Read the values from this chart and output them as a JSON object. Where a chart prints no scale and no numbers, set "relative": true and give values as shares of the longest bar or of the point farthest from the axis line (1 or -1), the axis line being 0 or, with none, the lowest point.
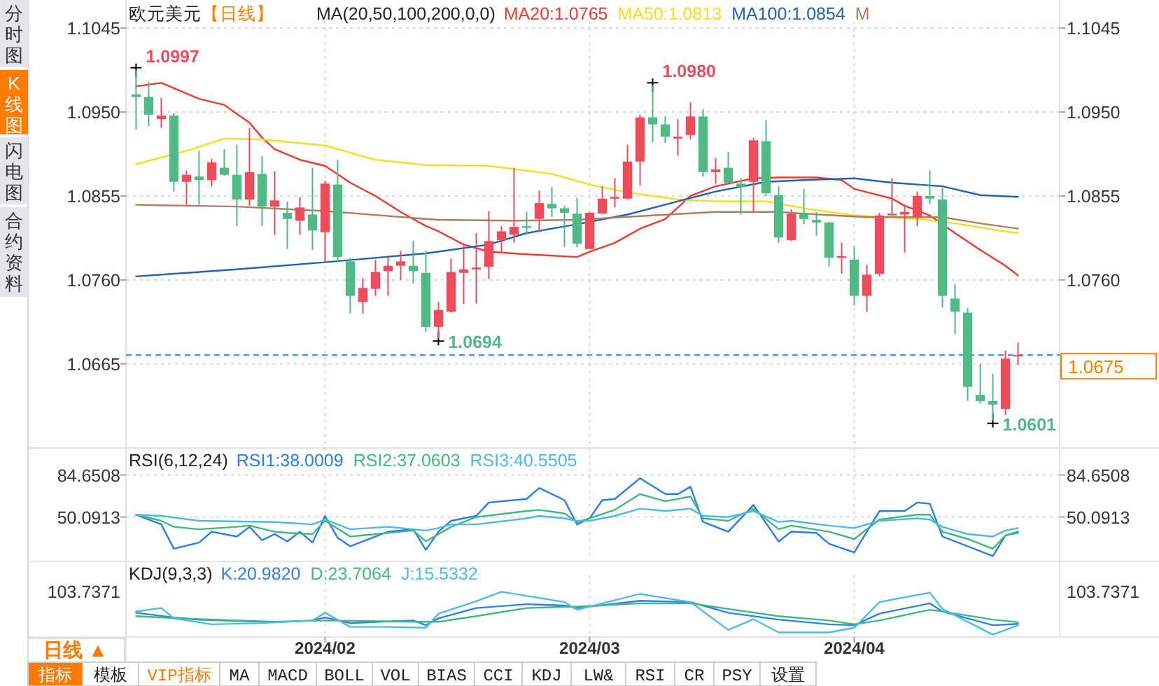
{
  "chart_data": [
    {
      "type": "candlestick",
      "title": "欧元美元",
      "subtitle": "【日线】",
      "legend_title": "MA(20,50,100,200,0,0)",
      "grid": true,
      "tick_labels": "y",
      "categories": [
        null,
        null,
        null,
        null,
        null,
        null,
        null,
        null,
        null,
        null,
        null,
        null,
        null,
        null,
        null,
        "2024/02",
        null,
        null,
        null,
        null,
        null,
        null,
        null,
        null,
        null,
        null,
        null,
        null,
        null,
        null,
        null,
        null,
        null,
        null,
        null,
        null,
        "2024/03",
        null,
        null,
        null,
        null,
        null,
        null,
        null,
        null,
        null,
        null,
        null,
        null,
        null,
        null,
        null,
        null,
        null,
        null,
        null,
        null,
        "2024/04",
        null,
        null,
        null,
        null,
        null,
        null,
        null,
        null,
        null,
        null,
        null,
        null,
        null
      ],
      "ohlc": [
        [
          1.097,
          1.0997,
          1.093,
          1.0967
        ],
        [
          1.0967,
          1.0984,
          1.0934,
          1.0947
        ],
        [
          1.0942,
          1.0966,
          1.0932,
          1.0946
        ],
        [
          1.0946,
          1.0949,
          1.086,
          1.0871
        ],
        [
          1.0871,
          1.0884,
          1.0845,
          1.0879
        ],
        [
          1.0877,
          1.0906,
          1.0845,
          1.0873
        ],
        [
          1.0873,
          1.0897,
          1.0866,
          1.0893
        ],
        [
          1.0887,
          1.0908,
          1.0878,
          1.0879
        ],
        [
          1.0879,
          1.0913,
          1.0821,
          1.0851
        ],
        [
          1.0851,
          1.0932,
          1.0844,
          1.0882
        ],
        [
          1.088,
          1.09,
          1.0821,
          1.0843
        ],
        [
          1.0843,
          1.0883,
          1.0811,
          1.085
        ],
        [
          1.0836,
          1.0849,
          1.0795,
          1.0829
        ],
        [
          1.0827,
          1.0854,
          1.0811,
          1.0842
        ],
        [
          1.0834,
          1.0887,
          1.0794,
          1.0816
        ],
        [
          1.0814,
          1.0872,
          1.078,
          1.0869
        ],
        [
          1.0868,
          1.0896,
          1.078,
          1.0786
        ],
        [
          1.0781,
          1.0785,
          1.0722,
          1.0742
        ],
        [
          1.0735,
          1.0762,
          1.0722,
          1.0751
        ],
        [
          1.075,
          1.0783,
          1.0742,
          1.0769
        ],
        [
          1.077,
          1.0786,
          1.0742,
          1.0776
        ],
        [
          1.0776,
          1.0793,
          1.076,
          1.0781
        ],
        [
          1.0776,
          1.0804,
          1.0756,
          1.077
        ],
        [
          1.0768,
          1.0793,
          1.0701,
          1.0707
        ],
        [
          1.0707,
          1.0735,
          1.0694,
          1.0726
        ],
        [
          1.0724,
          1.0784,
          1.0723,
          1.0769
        ],
        [
          1.0768,
          1.0801,
          1.0733,
          1.0772
        ],
        [
          1.0772,
          1.0813,
          1.0733,
          1.0774
        ],
        [
          1.0775,
          1.0838,
          1.0761,
          1.0804
        ],
        [
          1.0805,
          1.0821,
          1.0791,
          1.0815
        ],
        [
          1.0811,
          1.0887,
          1.0802,
          1.082
        ],
        [
          1.0821,
          1.0837,
          1.0811,
          1.0819
        ],
        [
          1.0829,
          1.0861,
          1.0814,
          1.0847
        ],
        [
          1.0846,
          1.0865,
          1.0831,
          1.0841
        ],
        [
          1.0841,
          1.0844,
          1.0797,
          1.0836
        ],
        [
          1.0835,
          1.0853,
          1.0797,
          1.0801
        ],
        [
          1.0795,
          1.0837,
          1.0795,
          1.0836
        ],
        [
          1.0835,
          1.0866,
          1.0835,
          1.0852
        ],
        [
          1.0852,
          1.0875,
          1.0842,
          1.0854
        ],
        [
          1.0852,
          1.0913,
          1.0851,
          1.0894
        ],
        [
          1.0894,
          1.0947,
          1.0867,
          1.0944
        ],
        [
          1.0944,
          1.098,
          1.0916,
          1.0936
        ],
        [
          1.0936,
          1.0945,
          1.0915,
          1.0922
        ],
        [
          1.092,
          1.0942,
          1.0901,
          1.0922
        ],
        [
          1.0924,
          1.0961,
          1.0919,
          1.0945
        ],
        [
          1.0945,
          1.0953,
          1.0877,
          1.0882
        ],
        [
          1.0882,
          1.0898,
          1.0869,
          1.0885
        ],
        [
          1.0887,
          1.0905,
          1.087,
          1.087
        ],
        [
          1.0869,
          1.0875,
          1.0834,
          1.0865
        ],
        [
          1.0871,
          1.0921,
          1.0837,
          1.0918
        ],
        [
          1.0917,
          1.0941,
          1.0855,
          1.0858
        ],
        [
          1.0856,
          1.0866,
          1.0802,
          1.0808
        ],
        [
          1.0805,
          1.084,
          1.0804,
          1.0835
        ],
        [
          1.0835,
          1.0863,
          1.0823,
          1.0829
        ],
        [
          1.0828,
          1.0837,
          1.081,
          1.0825
        ],
        [
          1.0825,
          1.0826,
          1.0775,
          1.0785
        ],
        [
          1.0785,
          1.0802,
          1.0767,
          1.0787
        ],
        [
          1.0783,
          1.0798,
          1.0731,
          1.0742
        ],
        [
          1.0742,
          1.0777,
          1.0724,
          1.0766
        ],
        [
          1.0767,
          1.0836,
          1.0764,
          1.0833
        ],
        [
          1.0833,
          1.0875,
          1.0833,
          1.0835
        ],
        [
          1.0834,
          1.0845,
          1.0791,
          1.0837
        ],
        [
          1.0831,
          1.086,
          1.0821,
          1.0855
        ],
        [
          1.0855,
          1.0884,
          1.0846,
          1.0852
        ],
        [
          1.0851,
          1.0864,
          1.0729,
          1.0742
        ],
        [
          1.0739,
          1.0755,
          1.0699,
          1.0724
        ],
        [
          1.0723,
          1.0728,
          1.0623,
          1.0639
        ],
        [
          1.063,
          1.0665,
          1.062,
          1.0623
        ],
        [
          1.0623,
          1.0654,
          1.0601,
          1.0619
        ],
        [
          1.0614,
          1.068,
          1.0607,
          1.0671
        ],
        [
          1.0674,
          1.0689,
          1.0664,
          1.0675
        ]
      ],
      "colors": [
        "#52b986",
        "#52b986",
        "#ec4d5d",
        "#52b986",
        "#ec4d5d",
        "#52b986",
        "#ec4d5d",
        "#52b986",
        "#52b986",
        "#ec4d5d",
        "#52b986",
        "#ec4d5d",
        "#52b986",
        "#ec4d5d",
        "#52b986",
        "#ec4d5d",
        "#52b986",
        "#52b986",
        "#ec4d5d",
        "#ec4d5d",
        "#ec4d5d",
        "#ec4d5d",
        "#52b986",
        "#52b986",
        "#ec4d5d",
        "#ec4d5d",
        "#ec4d5d",
        "#ec4d5d",
        "#ec4d5d",
        "#ec4d5d",
        "#ec4d5d",
        "#52b986",
        "#ec4d5d",
        "#52b986",
        "#52b986",
        "#52b986",
        "#ec4d5d",
        "#ec4d5d",
        "#ec4d5d",
        "#ec4d5d",
        "#ec4d5d",
        "#52b986",
        "#52b986",
        "#ec4d5d",
        "#ec4d5d",
        "#52b986",
        "#ec4d5d",
        "#52b986",
        "#52b986",
        "#ec4d5d",
        "#52b986",
        "#52b986",
        "#ec4d5d",
        "#52b986",
        "#52b986",
        "#52b986",
        "#ec4d5d",
        "#52b986",
        "#ec4d5d",
        "#ec4d5d",
        "#ec4d5d",
        "#ec4d5d",
        "#ec4d5d",
        "#52b986",
        "#52b986",
        "#52b986",
        "#52b986",
        "#52b986",
        "#52b986",
        "#ec4d5d",
        "#ec4d5d"
      ],
      "series": [
        {
          "name": "MA20:1.0765",
          "type": "line",
          "color": "#f03a2e",
          "values": [
            1.0979,
            null,
            1.0983,
            null,
            1.0971,
            1.0965,
            null,
            1.0958,
            null,
            1.0938,
            1.0921,
            1.0908,
            null,
            1.0896,
            null,
            1.0889,
            null,
            1.087,
            null,
            1.0855,
            null,
            1.0837,
            null,
            1.0821,
            1.0815,
            null,
            1.08,
            null,
            1.0792,
            null,
            null,
            1.0789,
            null,
            null,
            null,
            1.0786,
            1.0792,
            null,
            1.0802,
            null,
            1.0818,
            null,
            1.0829,
            1.0842,
            1.0855,
            null,
            1.0866,
            null,
            null,
            1.0875,
            null,
            1.0876,
            null,
            null,
            1.0876,
            null,
            1.0873,
            1.0863,
            null,
            null,
            1.0852,
            1.0844,
            null,
            1.0833,
            null,
            1.0813,
            null,
            1.0794,
            null,
            1.0776,
            1.0765
          ]
        },
        {
          "name": "MA50:1.0813",
          "type": "line",
          "color": "#f2e01e",
          "values": [
            1.0891,
            null,
            null,
            null,
            1.0906,
            null,
            null,
            1.092,
            null,
            null,
            1.0919,
            null,
            null,
            null,
            null,
            1.0912,
            null,
            null,
            null,
            1.0896,
            null,
            null,
            null,
            1.089,
            null,
            null,
            null,
            null,
            1.0889,
            null,
            null,
            null,
            null,
            1.088,
            null,
            null,
            1.0868,
            null,
            null,
            1.0859,
            null,
            null,
            null,
            1.0851,
            null,
            null,
            1.0849,
            null,
            null,
            null,
            1.0849,
            null,
            null,
            1.0841,
            null,
            null,
            null,
            1.0833,
            null,
            null,
            null,
            null,
            1.0829,
            null,
            null,
            1.0824,
            null,
            null,
            1.0817,
            null,
            1.0813
          ]
        },
        {
          "name": "MA100:1.0854",
          "type": "line",
          "color": "#1f63b5",
          "values": [
            1.0764,
            null,
            null,
            null,
            null,
            null,
            null,
            null,
            1.0772,
            null,
            null,
            null,
            null,
            null,
            null,
            1.078,
            null,
            null,
            null,
            null,
            null,
            null,
            null,
            1.079,
            null,
            null,
            null,
            null,
            1.08,
            null,
            null,
            1.0813,
            null,
            null,
            null,
            1.0823,
            null,
            null,
            null,
            1.0834,
            null,
            null,
            null,
            1.0849,
            null,
            null,
            1.086,
            null,
            null,
            null,
            1.0871,
            null,
            null,
            1.0873,
            null,
            null,
            null,
            1.0875,
            null,
            null,
            1.087,
            null,
            null,
            null,
            1.0866,
            null,
            null,
            1.0856,
            null,
            null,
            1.0854
          ]
        },
        {
          "name": "M",
          "type": "line",
          "color": "#b07d62",
          "values": [
            1.0845,
            null,
            null,
            null,
            null,
            null,
            null,
            null,
            1.0843,
            null,
            null,
            null,
            null,
            null,
            null,
            1.0838,
            null,
            null,
            null,
            null,
            null,
            null,
            null,
            1.0829,
            1.0828,
            null,
            null,
            null,
            null,
            null,
            1.0827,
            null,
            null,
            null,
            null,
            1.0828,
            null,
            null,
            null,
            null,
            null,
            1.0833,
            null,
            null,
            null,
            null,
            1.0837,
            null,
            null,
            null,
            null,
            1.0837,
            null,
            1.0835,
            null,
            null,
            null,
            null,
            1.0831,
            null,
            null,
            null,
            null,
            null,
            1.0831,
            null,
            null,
            1.0824,
            null,
            null,
            1.0818
          ]
        }
      ],
      "ylim": [
        1.0573,
        1.1053
      ],
      "yticks": [
        1.1045,
        {
          "value": 1.095,
          "label": "1.0950"
        },
        1.0855,
        {
          "value": 1.076,
          "label": "1.0760"
        },
        1.0665
      ],
      "y2lim": [
        1.0573,
        1.1053
      ],
      "y2ticks": [
        1.1045,
        {
          "value": 1.095,
          "label": "1.0950"
        },
        1.0855,
        {
          "value": 1.076,
          "label": "1.0760"
        }
      ],
      "ref_lines": [
        {
          "axis": "y",
          "value": 1.0675,
          "label": "1.0675",
          "color": "#1e88ff",
          "line_style": "dashed"
        }
      ],
      "annotations": [
        "1.0997",
        "1.0980",
        "1.0694",
        "1.0601"
      ]
    },
    {
      "type": "line",
      "legend_title": "RSI(6,12,24)",
      "grid": true,
      "tick_labels": "y",
      "categories": [
        null,
        null,
        null,
        null,
        null,
        null,
        null,
        null,
        null,
        null,
        null,
        null,
        null,
        null,
        null,
        "2024/02",
        null,
        null,
        null,
        null,
        null,
        null,
        null,
        null,
        null,
        null,
        null,
        null,
        null,
        null,
        null,
        null,
        null,
        null,
        null,
        null,
        "2024/03",
        null,
        null,
        null,
        null,
        null,
        null,
        null,
        null,
        null,
        null,
        null,
        null,
        null,
        null,
        null,
        null,
        null,
        null,
        null,
        null,
        "2024/04",
        null,
        null,
        null,
        null,
        null,
        null,
        null,
        null,
        null,
        null,
        null,
        null,
        null
      ],
      "ylim": [
        14.7,
        104.6
      ],
      "yticks": [
        84.6508,
        50.0913
      ],
      "y2lim": [
        14.7,
        104.6
      ],
      "y2ticks": [
        84.6508,
        50.0913
      ],
      "series": [
        {
          "name": "RSI1:38.0009",
          "color": "#2b7de9",
          "values": [
            52,
            null,
            44,
            24,
            null,
            29,
            38,
            null,
            34,
            42,
            31,
            36,
            30,
            38,
            29,
            51,
            33,
            26,
            30,
            null,
            38,
            null,
            40,
            23,
            38,
            47,
            null,
            51,
            62,
            null,
            null,
            65,
            74,
            null,
            64,
            44,
            49,
            64,
            65,
            null,
            82,
            null,
            69,
            69,
            75,
            46,
            null,
            38,
            null,
            60,
            null,
            30,
            38,
            null,
            37,
            28,
            null,
            21,
            null,
            55,
            null,
            55,
            62,
            61,
            34,
            null,
            26,
            null,
            18,
            35,
            38
          ]
        },
        {
          "name": "RSI2:37.0603",
          "color": "#3dba7c",
          "values": [
            52,
            null,
            47,
            42,
            null,
            40,
            null,
            null,
            42,
            43,
            null,
            38,
            37,
            null,
            36,
            47,
            null,
            34,
            35,
            null,
            null,
            null,
            39,
            30,
            36,
            42,
            null,
            50,
            null,
            null,
            null,
            55,
            56,
            null,
            53,
            46,
            49,
            null,
            56,
            null,
            69,
            null,
            63,
            null,
            67,
            49,
            null,
            47,
            null,
            57,
            null,
            40,
            43,
            null,
            null,
            38,
            null,
            32,
            null,
            48,
            null,
            null,
            52,
            52,
            38,
            null,
            32,
            null,
            24,
            35,
            37
          ]
        },
        {
          "name": "RSI3:40.5505",
          "color": "#4db8ec",
          "values": [
            52,
            null,
            51,
            null,
            null,
            47,
            null,
            null,
            null,
            null,
            null,
            46,
            null,
            null,
            44,
            48,
            null,
            40,
            null,
            null,
            42,
            null,
            null,
            39,
            41,
            44,
            null,
            44,
            null,
            null,
            null,
            49,
            51,
            null,
            49,
            47,
            47,
            null,
            51,
            null,
            57,
            null,
            55,
            null,
            57,
            51,
            null,
            50,
            null,
            55,
            null,
            46,
            47,
            null,
            null,
            43,
            null,
            41,
            null,
            47,
            null,
            null,
            49,
            48,
            42,
            null,
            36,
            null,
            34,
            39,
            41
          ]
        }
      ]
    },
    {
      "type": "line",
      "relative": true,
      "legend_title": "KDJ(9,3,3)",
      "grid": "x",
      "tick_labels": "x",
      "categories": [
        null,
        null,
        null,
        null,
        null,
        null,
        null,
        null,
        null,
        null,
        null,
        null,
        null,
        null,
        null,
        "2024/02",
        null,
        null,
        null,
        null,
        null,
        null,
        null,
        null,
        null,
        null,
        null,
        null,
        null,
        null,
        null,
        null,
        null,
        null,
        null,
        null,
        "2024/03",
        null,
        null,
        null,
        null,
        null,
        null,
        null,
        null,
        null,
        null,
        null,
        null,
        null,
        null,
        null,
        null,
        null,
        null,
        null,
        null,
        "2024/04",
        null,
        null,
        null,
        null,
        null,
        null,
        null,
        null,
        null,
        null,
        null,
        null,
        null
      ],
      "annotations": [
        "103.7371",
        "103.7371"
      ],
      "series": [
        {
          "name": "K:20.9820",
          "color": "#2f80e8",
          "values": [
            0.51,
            null,
            null,
            0.4,
            null,
            0.35,
            null,
            null,
            null,
            null,
            null,
            0.29,
            null,
            null,
            0.33,
            0.4,
            null,
            0.27,
            null,
            null,
            null,
            null,
            0.33,
            0.22,
            0.38,
            null,
            null,
            0.62,
            null,
            null,
            null,
            0.71,
            null,
            null,
            0.68,
            0.62,
            null,
            null,
            null,
            null,
            0.79,
            null,
            null,
            null,
            0.76,
            null,
            null,
            0.51,
            null,
            null,
            null,
            0.35,
            null,
            null,
            null,
            0.24,
            null,
            0.22,
            null,
            0.49,
            null,
            null,
            null,
            0.73,
            0.54,
            null,
            null,
            null,
            0.22,
            null,
            0.25
          ]
        },
        {
          "name": "D:23.7064",
          "color": "#3dba7c",
          "values": [
            0.43,
            null,
            null,
            null,
            null,
            0.36,
            null,
            null,
            null,
            null,
            null,
            0.3,
            null,
            null,
            null,
            0.33,
            null,
            null,
            null,
            null,
            null,
            null,
            0.3,
            null,
            0.3,
            null,
            null,
            0.43,
            null,
            null,
            null,
            0.62,
            null,
            null,
            0.65,
            0.65,
            null,
            null,
            null,
            null,
            0.73,
            null,
            null,
            null,
            0.73,
            null,
            null,
            0.6,
            null,
            null,
            null,
            0.43,
            null,
            null,
            null,
            0.33,
            null,
            0.24,
            null,
            0.33,
            null,
            null,
            null,
            0.58,
            0.54,
            null,
            null,
            null,
            0.35,
            null,
            0.29
          ]
        },
        {
          "name": "J:15.5332",
          "color": "#4cbcec",
          "values": [
            0.54,
            null,
            0.62,
            0.38,
            null,
            null,
            0.24,
            null,
            null,
            null,
            0.27,
            null,
            null,
            null,
            0.33,
            0.51,
            null,
            0.18,
            null,
            null,
            0.18,
            null,
            null,
            0.16,
            0.49,
            null,
            null,
            0.78,
            null,
            1,
            null,
            null,
            null,
            null,
            0.76,
            0.58,
            null,
            null,
            null,
            null,
            0.95,
            null,
            null,
            null,
            0.76,
            null,
            null,
            0.11,
            null,
            0.36,
            null,
            0.05,
            null,
            null,
            null,
            0.05,
            null,
            0.16,
            null,
            0.76,
            null,
            null,
            null,
            0.98,
            0.6,
            null,
            null,
            null,
            0,
            null,
            0.22
          ]
        }
      ]
    },
    {
      "type": "other",
      "annotations": [
        "分时图",
        "K线图",
        "闪电图",
        "合约资料",
        "日线 ▲",
        "指标",
        "模板",
        "VIP指标",
        "MA",
        "MACD",
        "BOLL",
        "VOL",
        "BIAS",
        "CCI",
        "KDJ",
        "LW&",
        "RSI",
        "CR",
        "PSY",
        "设置"
      ]
    }
  ]
}
